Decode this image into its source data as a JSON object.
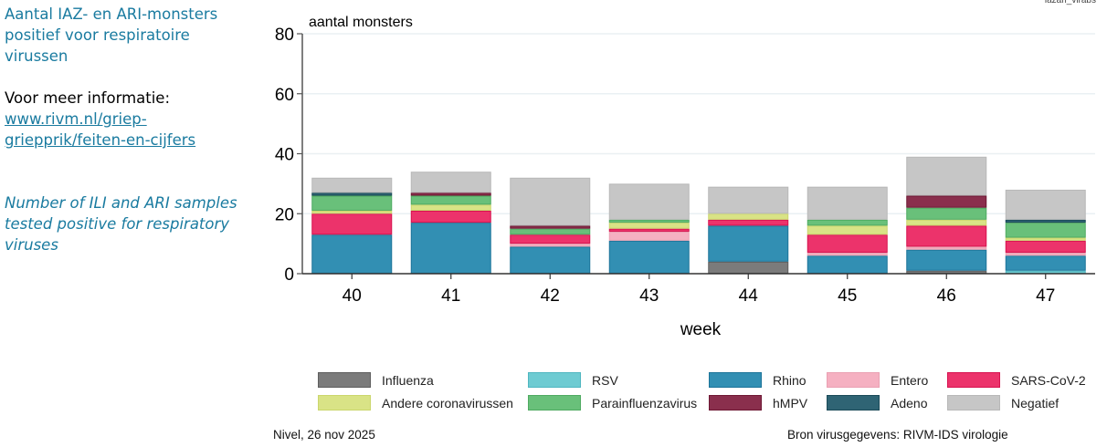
{
  "sidebar": {
    "title_nl": "Aantal IAZ- en ARI-monsters positief voor respiratoire virussen",
    "more_info_label": "Voor meer informatie:",
    "link_text": "www.rivm.nl/griep-griepprik/feiten-en-cijfers",
    "title_en": "Number of ILI and ARI samples tested positive for respiratory viruses"
  },
  "graph_id": "lazari_virabs",
  "footer": {
    "left": "Nivel, 26 nov 2025",
    "right": "Bron virusgegevens: RIVM-IDS virologie"
  },
  "chart_data": {
    "type": "bar",
    "stacked": true,
    "title": "",
    "xlabel": "week",
    "ylabel": "aantal monsters",
    "ylim": [
      0,
      80
    ],
    "yticks": [
      0,
      20,
      40,
      60,
      80
    ],
    "grid": true,
    "legend_position": "bottom",
    "categories": [
      "40",
      "41",
      "42",
      "43",
      "44",
      "45",
      "46",
      "47"
    ],
    "series": [
      {
        "name": "Influenza",
        "color": "#7b7b7b",
        "border": "#5e5e5e",
        "values": [
          0,
          0,
          0,
          0,
          4,
          0,
          1,
          0
        ]
      },
      {
        "name": "RSV",
        "color": "#6ecbd2",
        "border": "#4fb6c0",
        "values": [
          0,
          0,
          0,
          0,
          0,
          0,
          0,
          1
        ]
      },
      {
        "name": "Rhino",
        "color": "#328fb3",
        "border": "#1c7499",
        "values": [
          13,
          17,
          9,
          11,
          12,
          6,
          7,
          5
        ]
      },
      {
        "name": "Entero",
        "color": "#f5b0c1",
        "border": "#eaa0b2",
        "values": [
          0,
          0,
          1,
          3,
          0,
          1,
          1,
          1
        ]
      },
      {
        "name": "SARS-CoV-2",
        "color": "#ec336b",
        "border": "#d7124f",
        "values": [
          7,
          4,
          3,
          1,
          2,
          6,
          7,
          4
        ]
      },
      {
        "name": "Andere coronavirussen",
        "color": "#d9e386",
        "border": "#cbd66c",
        "values": [
          1,
          2,
          0,
          2,
          2,
          3,
          2,
          1
        ]
      },
      {
        "name": "Parainfluenzavirus",
        "color": "#69c07a",
        "border": "#4faa61",
        "values": [
          5,
          3,
          2,
          1,
          0,
          2,
          4,
          5
        ]
      },
      {
        "name": "hMPV",
        "color": "#8a2f4d",
        "border": "#6e1834",
        "values": [
          0,
          1,
          1,
          0,
          0,
          0,
          4,
          0
        ]
      },
      {
        "name": "Adeno",
        "color": "#2f6474",
        "border": "#1b4a58",
        "values": [
          1,
          0,
          0,
          0,
          0,
          0,
          0,
          1
        ]
      },
      {
        "name": "Negatief",
        "color": "#c6c6c6",
        "border": "#b8b8b8",
        "values": [
          5,
          7,
          16,
          12,
          9,
          11,
          13,
          10
        ]
      }
    ],
    "legend_order": [
      "Influenza",
      "RSV",
      "Rhino",
      "Entero",
      "SARS-CoV-2",
      "Andere coronavirussen",
      "Parainfluenzavirus",
      "hMPV",
      "Adeno",
      "Negatief"
    ]
  }
}
